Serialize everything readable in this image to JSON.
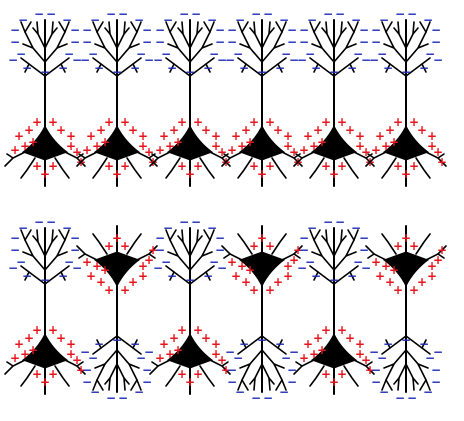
{
  "figure": {
    "description_none": "",
    "colors": {
      "neuron": "#000000",
      "positive": "#e8141b",
      "negative": "#1c2bb8",
      "background": "#ffffff"
    },
    "symbols": {
      "positive": "+",
      "negative": "−"
    },
    "rows": [
      {
        "row": "top",
        "neurons": [
          {
            "orientation": "up"
          },
          {
            "orientation": "up"
          },
          {
            "orientation": "up"
          },
          {
            "orientation": "up"
          },
          {
            "orientation": "up"
          },
          {
            "orientation": "up"
          }
        ]
      },
      {
        "row": "bottom",
        "neurons": [
          {
            "orientation": "up"
          },
          {
            "orientation": "down"
          },
          {
            "orientation": "up"
          },
          {
            "orientation": "down"
          },
          {
            "orientation": "up"
          },
          {
            "orientation": "down"
          }
        ]
      }
    ]
  }
}
